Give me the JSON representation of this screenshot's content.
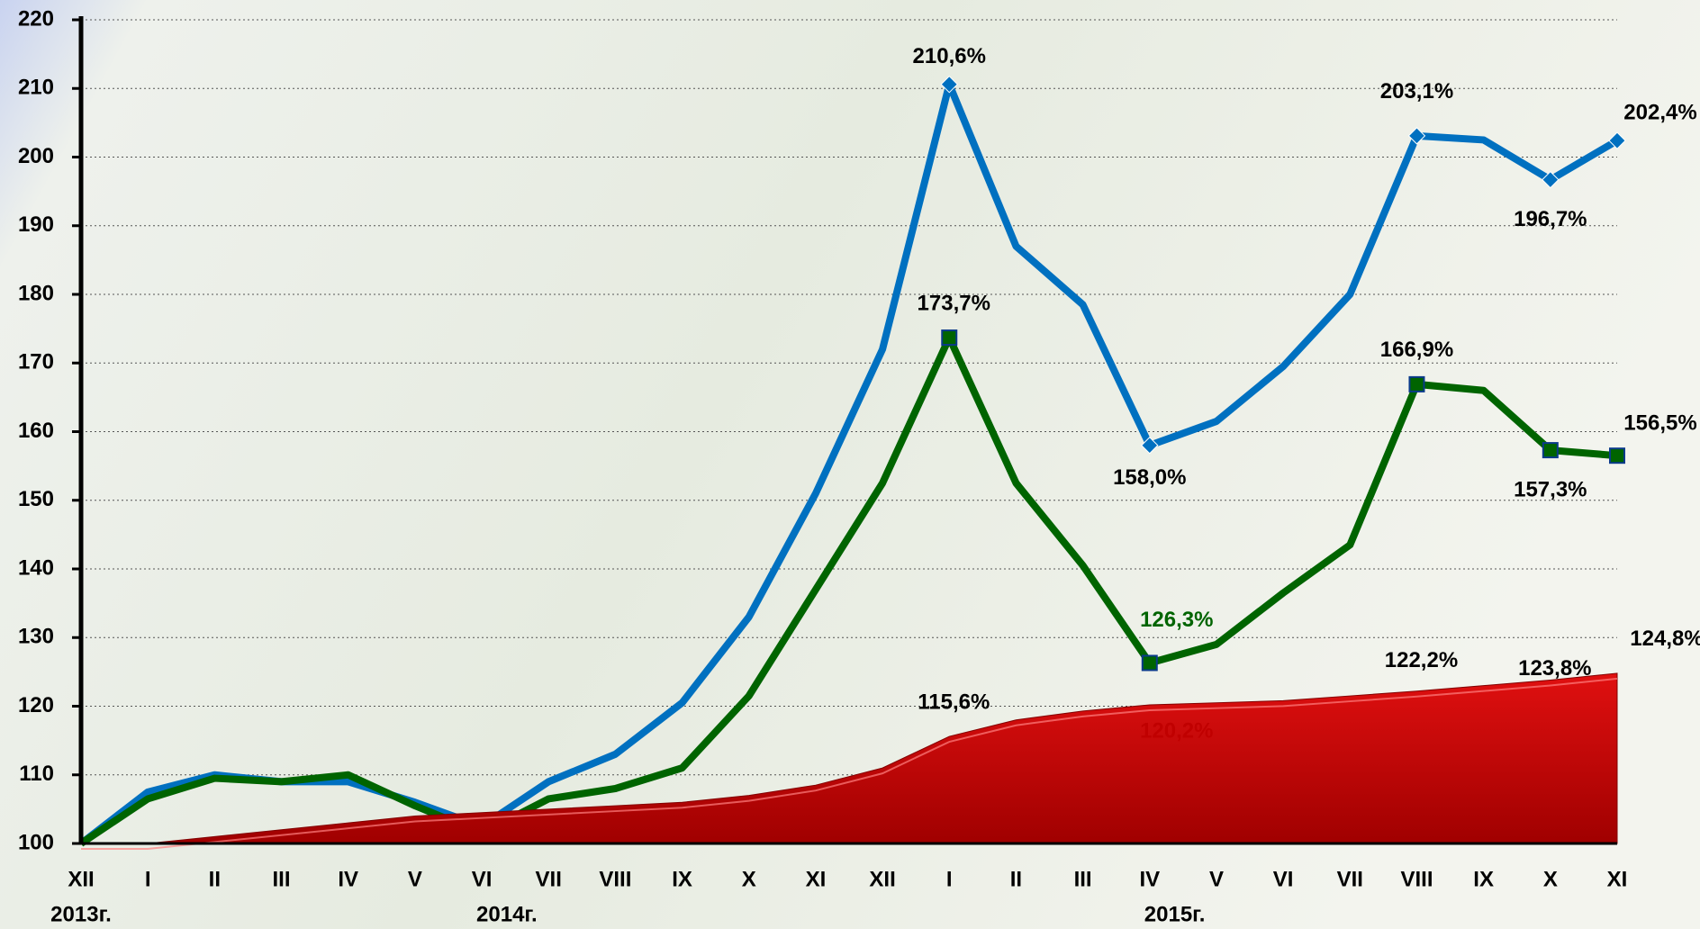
{
  "chart_data": {
    "type": "line",
    "categories": [
      "XII",
      "I",
      "II",
      "III",
      "IV",
      "V",
      "VI",
      "VII",
      "VIII",
      "IX",
      "X",
      "XI",
      "XII",
      "I",
      "II",
      "III",
      "IV",
      "V",
      "VI",
      "VII",
      "VIII",
      "IX",
      "X",
      "XI"
    ],
    "years": [
      "2013г.",
      null,
      null,
      null,
      null,
      null,
      "2014г.",
      null,
      null,
      null,
      null,
      null,
      null,
      null,
      null,
      null,
      "2015г.",
      null,
      null,
      null,
      null,
      null,
      null,
      null
    ],
    "series": [
      {
        "color": "#0070c0",
        "kind": "line",
        "marker": "diamond",
        "values": [
          100,
          107.5,
          110,
          109,
          109,
          106,
          102.5,
          109,
          113,
          120.5,
          133,
          151,
          172,
          210.6,
          187,
          178.5,
          158.0,
          161.5,
          169.5,
          180,
          203.1,
          202.5,
          196.7,
          202.4
        ],
        "value_labels": [
          null,
          null,
          null,
          null,
          null,
          null,
          null,
          null,
          null,
          null,
          null,
          null,
          null,
          "210,6%",
          null,
          null,
          "158,0%",
          null,
          null,
          null,
          "203,1%",
          null,
          "196,7%",
          "202,4%"
        ]
      },
      {
        "color": "#006400",
        "kind": "line",
        "marker": "square",
        "values": [
          100,
          106.5,
          109.5,
          109,
          110,
          105.5,
          101.5,
          106.5,
          108,
          111,
          121.5,
          137,
          152.5,
          173.7,
          152.5,
          140.5,
          126.3,
          129,
          136.5,
          143.5,
          166.9,
          166,
          157.3,
          156.5
        ],
        "value_labels": [
          null,
          null,
          null,
          null,
          null,
          null,
          null,
          null,
          null,
          null,
          null,
          null,
          null,
          "173,7%",
          null,
          null,
          "126,3%",
          null,
          null,
          null,
          "166,9%",
          null,
          "157,3%",
          "156,5%"
        ]
      },
      {
        "color": "#c00000",
        "kind": "area",
        "values": [
          100,
          100,
          101,
          102,
          103,
          104,
          104.5,
          105,
          105.5,
          106,
          107,
          108.5,
          111,
          115.6,
          118,
          119.3,
          120.2,
          120.5,
          120.8,
          121.5,
          122.2,
          123,
          123.8,
          124.8
        ],
        "value_labels": [
          null,
          null,
          null,
          null,
          null,
          null,
          null,
          null,
          null,
          null,
          null,
          null,
          null,
          "115,6%",
          null,
          null,
          "120,2%",
          null,
          null,
          null,
          "122,2%",
          null,
          "123,8%",
          "124,8%"
        ]
      }
    ],
    "ylim": [
      100,
      220
    ],
    "yticks": [
      100,
      110,
      120,
      130,
      140,
      150,
      160,
      170,
      180,
      190,
      200,
      210,
      220
    ],
    "grid": true
  }
}
